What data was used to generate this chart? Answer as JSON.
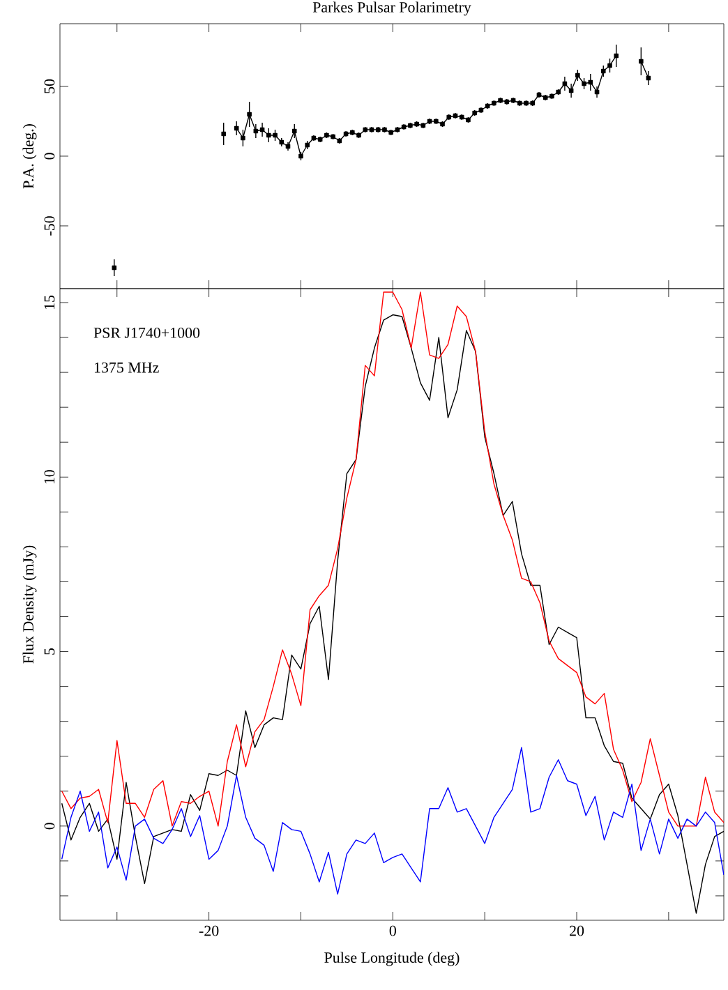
{
  "chart_data": [
    {
      "type": "line",
      "title": "Parkes Pulsar Polarimetry",
      "ylabel": "P.A. (deg.)",
      "xlim": [
        -36.2,
        36
      ],
      "ylim": [
        -95,
        95
      ],
      "xticks": [
        -30,
        -20,
        -10,
        0,
        10,
        20,
        30
      ],
      "yticks": [
        -50,
        0,
        50
      ],
      "tick_labels": "y",
      "marker": "square",
      "series": [
        {
          "color": "#000000",
          "x": [
            -30.3,
            -24,
            -18.4,
            -17.7,
            -17.0,
            -16.3,
            -15.6,
            -14.9,
            -14.2,
            -13.5,
            -12.8,
            -12.1,
            -11.4,
            -10.7,
            -10.0,
            -9.3,
            -8.6,
            -7.9,
            -7.2,
            -6.5,
            -5.8,
            -5.1,
            -4.4,
            -3.7,
            -3.0,
            -2.3,
            -1.6,
            -0.9,
            -0.2,
            0.5,
            1.2,
            1.9,
            2.6,
            3.3,
            4.0,
            4.7,
            5.4,
            6.1,
            6.8,
            7.5,
            8.2,
            8.9,
            9.6,
            10.3,
            11.0,
            11.7,
            12.4,
            13.1,
            13.8,
            14.5,
            15.2,
            15.9,
            16.6,
            17.3,
            18.0,
            18.7,
            19.4,
            20.1,
            20.8,
            21.5,
            22.2,
            22.9,
            23.6,
            24.3,
            26,
            27.0,
            27.8
          ],
          "values": [
            -80,
            null,
            16,
            null,
            20,
            13,
            30,
            18,
            19,
            15,
            15,
            10,
            7,
            18,
            0,
            8,
            13,
            12,
            15,
            14,
            11,
            16,
            17,
            15,
            19,
            19,
            19,
            19,
            17,
            19,
            21,
            22,
            23,
            22,
            25,
            25,
            23,
            28,
            29,
            28,
            26,
            31,
            33,
            36,
            38,
            40,
            39,
            40,
            38,
            38,
            38,
            44,
            42,
            43,
            46,
            52,
            47,
            58,
            52,
            53,
            46,
            61,
            65,
            72,
            null,
            68,
            56
          ],
          "errors": [
            6,
            null,
            8,
            null,
            5,
            6,
            9,
            5,
            5,
            5,
            4,
            3,
            3,
            5,
            3,
            3,
            2,
            2,
            2,
            2,
            2,
            2,
            2,
            2,
            2,
            2,
            2,
            2,
            2,
            2,
            2,
            2,
            2,
            2,
            2,
            2,
            2,
            2,
            2,
            2,
            2,
            2,
            2,
            2,
            2,
            2,
            2,
            2,
            2,
            2,
            2,
            2,
            2,
            2,
            2,
            5,
            5,
            4,
            4,
            6,
            4,
            4,
            5,
            8,
            null,
            10,
            5
          ]
        }
      ]
    },
    {
      "type": "line",
      "xlabel": "Pulse Longitude (deg)",
      "ylabel": "Flux Density (mJy)",
      "annotations": [
        "PSR J1740+1000",
        "1375 MHz"
      ],
      "xlim": [
        -36.2,
        36
      ],
      "ylim": [
        -2.7,
        15.4
      ],
      "xticks": [
        {
          "value": -30,
          "label": null
        },
        -20,
        {
          "value": -10,
          "label": null
        },
        0,
        {
          "value": 10,
          "label": null
        },
        20,
        {
          "value": 30,
          "label": null
        }
      ],
      "yticks": [
        {
          "value": -2,
          "label": null
        },
        {
          "value": -1,
          "label": null
        },
        0,
        {
          "value": 1,
          "label": null
        },
        {
          "value": 2,
          "label": null
        },
        {
          "value": 3,
          "label": null
        },
        {
          "value": 4,
          "label": null
        },
        5,
        {
          "value": 6,
          "label": null
        },
        {
          "value": 7,
          "label": null
        },
        {
          "value": 8,
          "label": null
        },
        {
          "value": 9,
          "label": null
        },
        10,
        {
          "value": 11,
          "label": null
        },
        {
          "value": 12,
          "label": null
        },
        {
          "value": 13,
          "label": null
        },
        {
          "value": 14,
          "label": null
        },
        15
      ],
      "x": [
        -36,
        -35,
        -34,
        -33,
        -32,
        -31,
        -30,
        -29,
        -28,
        -27,
        -26,
        -25,
        -24,
        -23,
        -22,
        -21,
        -20,
        -19,
        -18,
        -17,
        -16,
        -15,
        -14,
        -13,
        -12,
        -11,
        -10,
        -9,
        -8,
        -7,
        -6,
        -5,
        -4,
        -3,
        -2,
        -1,
        0,
        1,
        2,
        3,
        4,
        5,
        6,
        7,
        8,
        9,
        10,
        11,
        12,
        13,
        14,
        15,
        16,
        17,
        18,
        19,
        20,
        21,
        22,
        23,
        24,
        25,
        26,
        27,
        28,
        29,
        30,
        31,
        32,
        33,
        34,
        35,
        36
      ],
      "series": [
        {
          "color": "#000000",
          "values": [
            0.65,
            -0.4,
            0.25,
            0.65,
            -0.15,
            0.2,
            -0.95,
            1.25,
            -0.3,
            -1.65,
            -0.3,
            -0.2,
            -0.1,
            -0.15,
            0.9,
            0.45,
            1.5,
            1.45,
            1.6,
            1.45,
            3.3,
            2.25,
            2.9,
            3.1,
            3.05,
            4.9,
            4.5,
            5.8,
            6.3,
            4.2,
            7.6,
            10.1,
            10.5,
            12.6,
            13.7,
            14.5,
            14.65,
            14.6,
            13.7,
            12.7,
            12.2,
            14.0,
            11.7,
            12.5,
            14.2,
            13.6,
            11.15,
            10.1,
            8.9,
            9.3,
            7.8,
            6.9,
            6.9,
            5.2,
            5.7,
            5.55,
            5.4,
            3.1,
            3.1,
            2.3,
            1.85,
            1.8,
            0.8,
            0.5,
            0.2,
            0.9,
            1.2,
            0.3,
            -1.1,
            -2.5,
            -1.1,
            -0.3,
            -0.15
          ]
        },
        {
          "color": "#ff0000",
          "values": [
            1.0,
            0.5,
            0.8,
            0.85,
            1.05,
            0.1,
            2.45,
            0.65,
            0.65,
            0.25,
            1.05,
            1.3,
            0,
            0.7,
            0.65,
            0.85,
            1.0,
            0,
            1.85,
            2.9,
            1.7,
            2.7,
            3.05,
            4.0,
            5.05,
            4.35,
            3.45,
            6.2,
            6.6,
            6.9,
            7.95,
            9.4,
            10.5,
            13.2,
            12.9,
            15.3,
            15.3,
            14.8,
            13.7,
            15.3,
            13.5,
            13.4,
            13.8,
            14.9,
            14.6,
            13.6,
            11.3,
            9.8,
            8.9,
            8.2,
            7.1,
            7.0,
            6.4,
            5.3,
            4.8,
            4.6,
            4.4,
            3.7,
            3.5,
            3.8,
            2.2,
            1.6,
            0.7,
            1.25,
            2.5,
            1.45,
            0.4,
            0,
            0,
            0,
            1.4,
            0.4,
            0.1
          ]
        },
        {
          "color": "#0000ff",
          "values": [
            -0.95,
            0.25,
            1.0,
            -0.15,
            0.4,
            -1.2,
            -0.6,
            -1.55,
            0,
            0.2,
            -0.35,
            -0.5,
            -0.1,
            0.5,
            -0.3,
            0.3,
            -0.95,
            -0.7,
            0,
            1.45,
            0.25,
            -0.35,
            -0.55,
            -1.3,
            0.1,
            -0.1,
            -0.15,
            -0.8,
            -1.6,
            -0.75,
            -1.95,
            -0.8,
            -0.4,
            -0.5,
            -0.2,
            -1.05,
            -0.9,
            -0.8,
            -1.2,
            -1.6,
            0.5,
            0.5,
            1.1,
            0.4,
            0.5,
            0,
            -0.5,
            0.25,
            0.65,
            1.05,
            2.25,
            0.4,
            0.5,
            1.4,
            1.9,
            1.3,
            1.2,
            0.3,
            0.85,
            -0.4,
            0.4,
            0.25,
            1.2,
            -0.7,
            0.2,
            -0.8,
            0.2,
            -0.35,
            0.2,
            0,
            0.4,
            0.1,
            -1.4
          ]
        }
      ]
    }
  ]
}
